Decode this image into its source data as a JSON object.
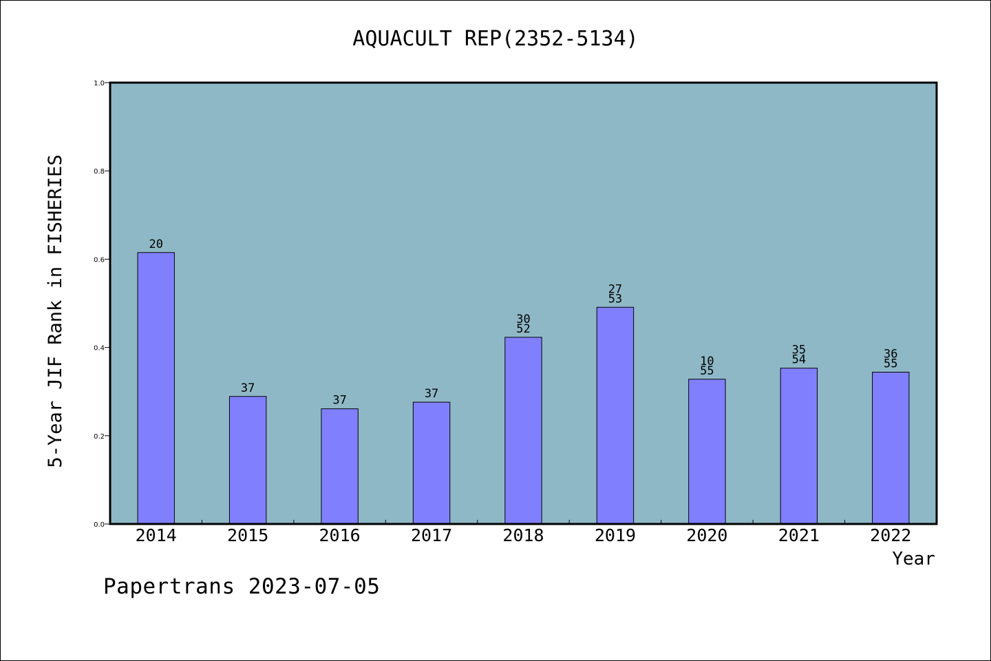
{
  "chart_data": {
    "type": "bar",
    "title": "AQUACULT REP(2352-5134)",
    "xlabel": "Year",
    "ylabel": "5-Year JIF Rank in FISHERIES",
    "ylim": [
      0.0,
      1.0
    ],
    "yticks": [
      "0.0",
      "0.2",
      "0.4",
      "0.6",
      "0.8",
      "1.0"
    ],
    "categories": [
      "2014",
      "2015",
      "2016",
      "2017",
      "2018",
      "2019",
      "2020",
      "2021",
      "2022"
    ],
    "values": [
      0.615,
      0.289,
      0.261,
      0.276,
      0.423,
      0.491,
      0.328,
      0.353,
      0.344
    ],
    "bar_labels": [
      [
        "20"
      ],
      [
        "37"
      ],
      [
        "37"
      ],
      [
        "37"
      ],
      [
        "30",
        "52"
      ],
      [
        "27",
        "53"
      ],
      [
        "10",
        "55"
      ],
      [
        "35",
        "54"
      ],
      [
        "36",
        "55"
      ]
    ],
    "bar_color": "#8080ff",
    "plot_background": "#8fb8c6",
    "grid": false
  },
  "footer": {
    "text": "Papertrans 2023-07-05"
  }
}
